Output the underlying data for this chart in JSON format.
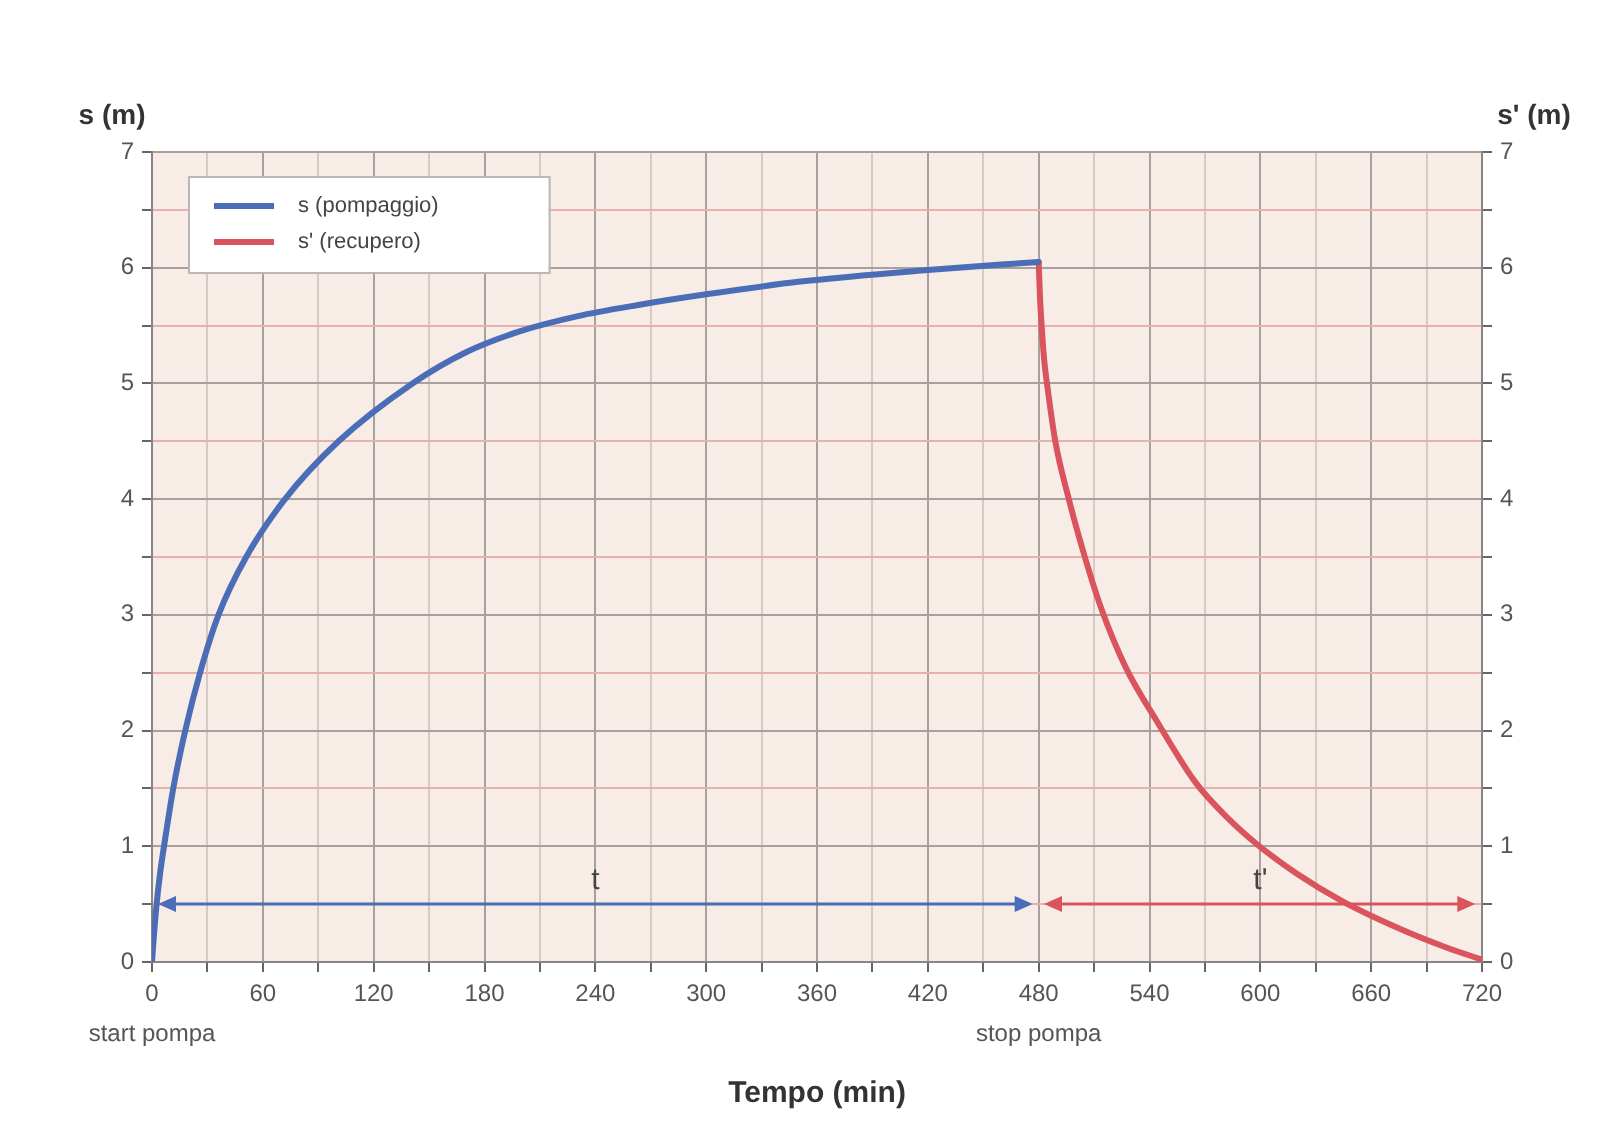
{
  "chart_data": {
    "type": "line",
    "xlabel": "Tempo (min)",
    "ylabel": "s (m)",
    "y2label": "s' (m)",
    "xlim": [
      0,
      720
    ],
    "xticks": [
      {
        "value": 0,
        "label": "0\nstart pompa"
      },
      {
        "value": 30,
        "label": null
      },
      60,
      {
        "value": 90,
        "label": null
      },
      120,
      {
        "value": 150,
        "label": null
      },
      180,
      {
        "value": 210,
        "label": null
      },
      240,
      {
        "value": 270,
        "label": null
      },
      300,
      {
        "value": 330,
        "label": null
      },
      360,
      {
        "value": 390,
        "label": null
      },
      420,
      {
        "value": 450,
        "label": null
      },
      {
        "value": 480,
        "label": "480\nstop pompa"
      },
      {
        "value": 510,
        "label": null
      },
      540,
      {
        "value": 570,
        "label": null
      },
      600,
      {
        "value": 630,
        "label": null
      },
      660,
      {
        "value": 690,
        "label": null
      },
      720
    ],
    "ylim": [
      0,
      7
    ],
    "yticks": [
      0,
      {
        "value": 0.5,
        "label": null
      },
      1,
      {
        "value": 1.5,
        "label": null
      },
      2,
      {
        "value": 2.5,
        "label": null
      },
      3,
      {
        "value": 3.5,
        "label": null
      },
      4,
      {
        "value": 4.5,
        "label": null
      },
      5,
      {
        "value": 5.5,
        "label": null
      },
      6,
      {
        "value": 6.5,
        "label": null
      },
      7
    ],
    "y2lim": [
      0,
      7
    ],
    "y2ticks": [
      0,
      {
        "value": 0.5,
        "label": null
      },
      1,
      {
        "value": 1.5,
        "label": null
      },
      2,
      {
        "value": 2.5,
        "label": null
      },
      3,
      {
        "value": 3.5,
        "label": null
      },
      4,
      {
        "value": 4.5,
        "label": null
      },
      5,
      {
        "value": 5.5,
        "label": null
      },
      6,
      {
        "value": 6.5,
        "label": null
      },
      7
    ],
    "grid": true,
    "legend": "top left",
    "series": [
      {
        "name": "s (pompaggio)",
        "color": "#4b6cb7",
        "x": [
          0,
          1,
          2.5,
          4.5,
          6.5,
          11.5,
          18,
          26,
          36,
          51,
          72,
          101,
          141,
          170,
          199,
          230,
          264,
          300,
          351,
          420,
          480
        ],
        "values": [
          0,
          0.22,
          0.5,
          0.78,
          1.0,
          1.5,
          2.0,
          2.5,
          3.0,
          3.5,
          4.0,
          4.5,
          5.0,
          5.27,
          5.45,
          5.58,
          5.68,
          5.77,
          5.88,
          5.98,
          6.05
        ]
      },
      {
        "name": "s' (recupero)",
        "color": "#d9545c",
        "axis": "y2",
        "x": [
          480,
          480.7,
          481.6,
          483,
          484.5,
          489,
          496,
          505,
          514,
          527,
          544,
          565,
          582,
          598,
          620,
          645,
          678,
          700,
          720
        ],
        "values": [
          6.05,
          5.75,
          5.5,
          5.2,
          5.0,
          4.5,
          4.02,
          3.5,
          3.05,
          2.55,
          2.08,
          1.55,
          1.25,
          1.02,
          0.76,
          0.52,
          0.27,
          0.13,
          0.02
        ]
      }
    ],
    "annotations": [
      "t",
      "t'"
    ]
  }
}
